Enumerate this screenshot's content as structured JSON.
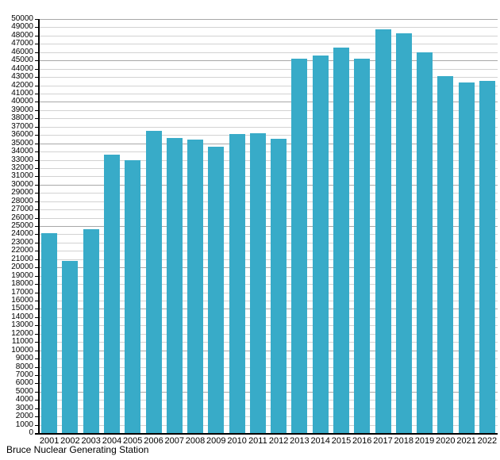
{
  "page": {
    "background_color": "#ffffff"
  },
  "caption": "Bruce Nuclear Generating Station",
  "chart_data": {
    "type": "bar",
    "title": "",
    "xlabel": "",
    "ylabel": "",
    "caption": "Bruce Nuclear Generating Station",
    "categories": [
      "2001",
      "2002",
      "2003",
      "2004",
      "2005",
      "2006",
      "2007",
      "2008",
      "2009",
      "2010",
      "2011",
      "2012",
      "2013",
      "2014",
      "2015",
      "2016",
      "2017",
      "2018",
      "2019",
      "2020",
      "2021",
      "2022"
    ],
    "values": [
      24100,
      20800,
      24600,
      33600,
      33000,
      36500,
      35600,
      35400,
      34600,
      36100,
      36200,
      35500,
      45200,
      45600,
      46600,
      45200,
      48800,
      48300,
      46000,
      43100,
      42300,
      42500
    ],
    "ylim": [
      0,
      50000
    ],
    "y_tick_step": 1000,
    "grid": true,
    "legend": "none",
    "bar_color": "#38abc8",
    "minor_gridline_color": "#d2d2d2",
    "major_gridline_color": "#a8a8a8",
    "axis_color": "#000000",
    "label_color": "#000000"
  }
}
